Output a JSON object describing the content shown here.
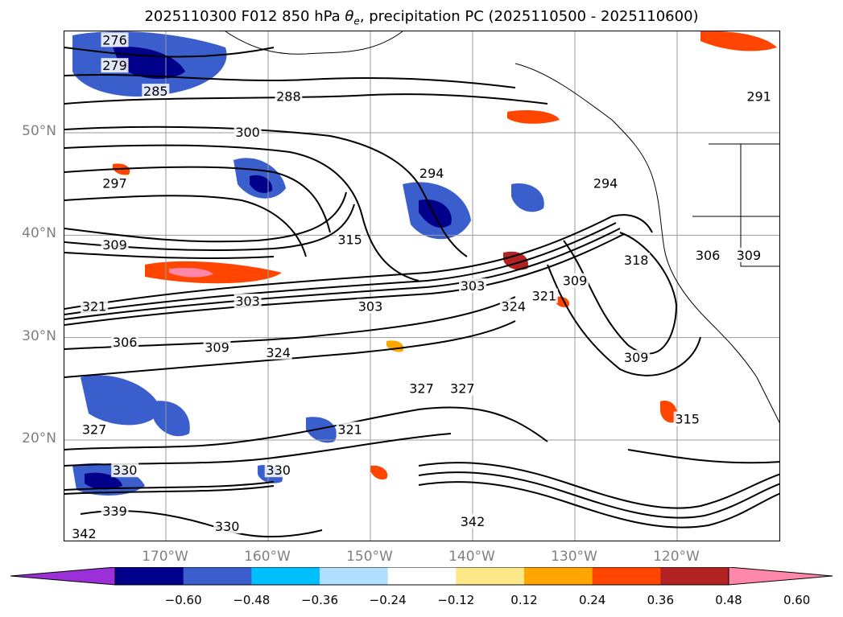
{
  "title_prefix": "2025110300 F012 850 hPa ",
  "title_symbol": "θ",
  "title_subscript": "e",
  "title_suffix": ", precipitation PC (2025110500 - 2025110600)",
  "map": {
    "lat_labels": [
      "50°N",
      "40°N",
      "30°N",
      "20°N"
    ],
    "lat_values": [
      50,
      40,
      30,
      20
    ],
    "lon_labels": [
      "170°W",
      "160°W",
      "150°W",
      "140°W",
      "130°W",
      "120°W"
    ],
    "lon_values": [
      -170,
      -160,
      -150,
      -140,
      -130,
      -120
    ],
    "extent": {
      "lon_min": -180,
      "lon_max": -110,
      "lat_min": 10,
      "lat_max": 60
    },
    "contour_labels": [
      {
        "text": "276",
        "lon": -175,
        "lat": 59
      },
      {
        "text": "279",
        "lon": -175,
        "lat": 56.5
      },
      {
        "text": "285",
        "lon": -171,
        "lat": 54
      },
      {
        "text": "288",
        "lon": -158,
        "lat": 53.5
      },
      {
        "text": "300",
        "lon": -162,
        "lat": 50
      },
      {
        "text": "297",
        "lon": -175,
        "lat": 45
      },
      {
        "text": "294",
        "lon": -144,
        "lat": 46
      },
      {
        "text": "294",
        "lon": -127,
        "lat": 45
      },
      {
        "text": "291",
        "lon": -112,
        "lat": 53.5
      },
      {
        "text": "309",
        "lon": -175,
        "lat": 39
      },
      {
        "text": "315",
        "lon": -152,
        "lat": 39.5
      },
      {
        "text": "303",
        "lon": -162,
        "lat": 33.5
      },
      {
        "text": "303",
        "lon": -150,
        "lat": 33
      },
      {
        "text": "303",
        "lon": -140,
        "lat": 35
      },
      {
        "text": "324",
        "lon": -136,
        "lat": 33
      },
      {
        "text": "321",
        "lon": -133,
        "lat": 34
      },
      {
        "text": "309",
        "lon": -130,
        "lat": 35.5
      },
      {
        "text": "321",
        "lon": -177,
        "lat": 33
      },
      {
        "text": "306",
        "lon": -174,
        "lat": 29.5
      },
      {
        "text": "309",
        "lon": -165,
        "lat": 29
      },
      {
        "text": "324",
        "lon": -159,
        "lat": 28.5
      },
      {
        "text": "309",
        "lon": -124,
        "lat": 28
      },
      {
        "text": "327",
        "lon": -145,
        "lat": 25
      },
      {
        "text": "327",
        "lon": -141,
        "lat": 25
      },
      {
        "text": "327",
        "lon": -177,
        "lat": 21
      },
      {
        "text": "321",
        "lon": -152,
        "lat": 21
      },
      {
        "text": "315",
        "lon": -119,
        "lat": 22
      },
      {
        "text": "330",
        "lon": -174,
        "lat": 17
      },
      {
        "text": "330",
        "lon": -159,
        "lat": 17
      },
      {
        "text": "339",
        "lon": -175,
        "lat": 13
      },
      {
        "text": "330",
        "lon": -164,
        "lat": 11.5
      },
      {
        "text": "342",
        "lon": -178,
        "lat": 10.8
      },
      {
        "text": "342",
        "lon": -140,
        "lat": 12
      },
      {
        "text": "318",
        "lon": -124,
        "lat": 37.5
      },
      {
        "text": "306",
        "lon": -117,
        "lat": 38
      },
      {
        "text": "309",
        "lon": -113,
        "lat": 38
      }
    ]
  },
  "colorbar": {
    "tick_labels": [
      "−0.60",
      "−0.48",
      "−0.36",
      "−0.24",
      "−0.12",
      "0.12",
      "0.24",
      "0.36",
      "0.48",
      "0.60"
    ],
    "colors": [
      "#9b30d9",
      "#00008b",
      "#3a5fcd",
      "#00bfff",
      "#b0e0ff",
      "#ffffff",
      "#ffe88a",
      "#ffa500",
      "#ff4500",
      "#b22222",
      "#ff88aa"
    ]
  }
}
